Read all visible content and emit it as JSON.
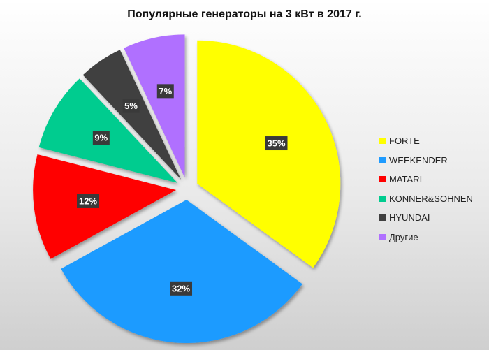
{
  "chart_data": {
    "type": "pie",
    "title": "Популярные генераторы на 3 кВт в 2017 г.",
    "categories": [
      "FORTE",
      "WEEKENDER",
      "MATARI",
      "KONNER&SOHNEN",
      "HYUNDAI",
      "Другие"
    ],
    "values": [
      35,
      32,
      12,
      9,
      5,
      7
    ],
    "data_labels": [
      "35%",
      "32%",
      "12%",
      "9%",
      "5%",
      "7%"
    ],
    "colors": [
      "#ffff00",
      "#1e9bff",
      "#ff0000",
      "#00cc8f",
      "#404040",
      "#b070ff"
    ],
    "exploded": true,
    "legend_position": "right"
  }
}
